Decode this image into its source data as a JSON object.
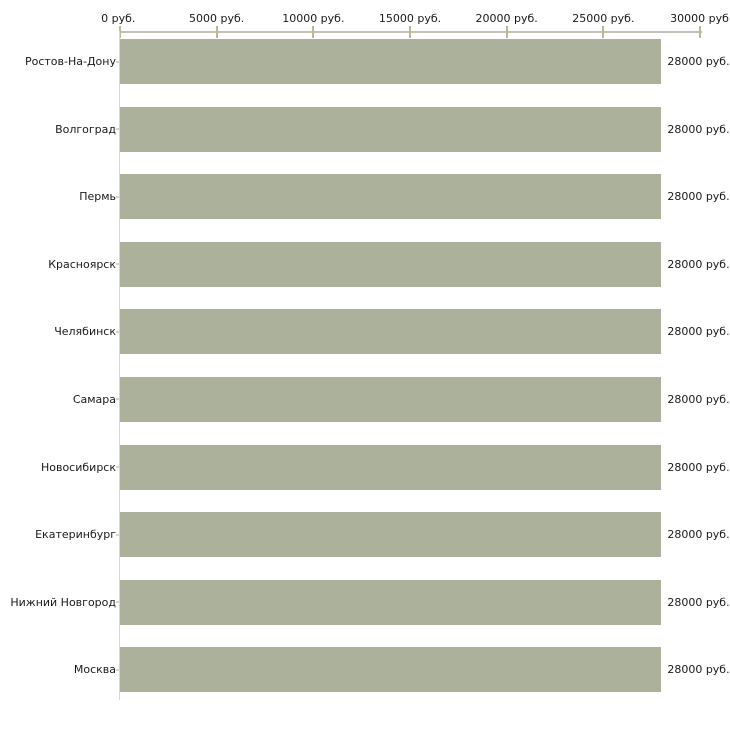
{
  "chart_data": {
    "type": "bar",
    "orientation": "horizontal",
    "title": "",
    "xlabel": "",
    "ylabel": "",
    "categories": [
      "Ростов-На-Дону",
      "Волгоград",
      "Пермь",
      "Красноярск",
      "Челябинск",
      "Самара",
      "Новосибирск",
      "Екатеринбург",
      "Нижний Новгород",
      "Москва"
    ],
    "values": [
      28000,
      28000,
      28000,
      28000,
      28000,
      28000,
      28000,
      28000,
      28000,
      28000
    ],
    "value_labels": [
      "28000 руб.",
      "28000 руб.",
      "28000 руб.",
      "28000 руб.",
      "28000 руб.",
      "28000 руб.",
      "28000 руб.",
      "28000 руб.",
      "28000 руб.",
      "28000 руб."
    ],
    "x_axis": {
      "position": "top",
      "min": 0,
      "max": 30000,
      "tick_values": [
        0,
        5000,
        10000,
        15000,
        20000,
        25000,
        30000
      ],
      "tick_labels": [
        "0 руб.",
        "5000 руб.",
        "10000 руб.",
        "15000 руб.",
        "20000 руб.",
        "25000 руб.",
        "30000 руб."
      ]
    },
    "grid": "off",
    "legend": "none",
    "bar_color": "#abb19a",
    "axis_line_color": "#c2c2ba",
    "tick_color": "#b9b a8e"
  }
}
